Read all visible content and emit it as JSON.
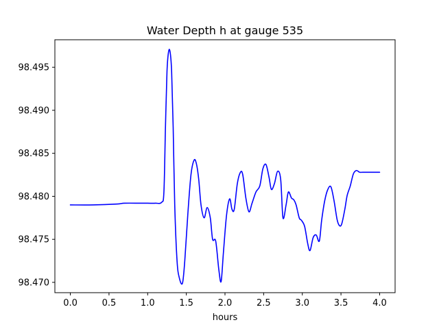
{
  "chart_data": {
    "type": "line",
    "title": "Water Depth h at gauge 535",
    "xlabel": "hours",
    "ylabel": "",
    "xlim": [
      -0.2,
      4.2
    ],
    "ylim": [
      98.4688,
      98.4982
    ],
    "xticks": [
      0.0,
      0.5,
      1.0,
      1.5,
      2.0,
      2.5,
      3.0,
      3.5,
      4.0
    ],
    "xtick_labels": [
      "0.0",
      "0.5",
      "1.0",
      "1.5",
      "2.0",
      "2.5",
      "3.0",
      "3.5",
      "4.0"
    ],
    "yticks": [
      98.47,
      98.475,
      98.48,
      98.485,
      98.49,
      98.495
    ],
    "ytick_labels": [
      "98.470",
      "98.475",
      "98.480",
      "98.485",
      "98.490",
      "98.495"
    ],
    "grid": false,
    "series": [
      {
        "color": "#0000ff",
        "x": [
          0.0,
          0.3,
          0.6,
          0.7,
          0.9,
          1.0,
          1.1,
          1.18,
          1.21,
          1.23,
          1.25,
          1.27,
          1.29,
          1.31,
          1.33,
          1.35,
          1.38,
          1.41,
          1.45,
          1.48,
          1.52,
          1.56,
          1.6,
          1.63,
          1.66,
          1.69,
          1.73,
          1.77,
          1.81,
          1.84,
          1.88,
          1.92,
          1.95,
          1.98,
          2.02,
          2.06,
          2.09,
          2.12,
          2.16,
          2.2,
          2.23,
          2.27,
          2.31,
          2.35,
          2.4,
          2.45,
          2.49,
          2.53,
          2.57,
          2.6,
          2.64,
          2.68,
          2.72,
          2.75,
          2.79,
          2.82,
          2.86,
          2.89,
          2.92,
          2.96,
          2.99,
          3.03,
          3.07,
          3.1,
          3.14,
          3.18,
          3.22,
          3.25,
          3.29,
          3.33,
          3.37,
          3.41,
          3.45,
          3.48,
          3.51,
          3.55,
          3.58,
          3.62,
          3.66,
          3.7,
          3.74,
          3.78,
          3.82,
          3.86,
          3.9,
          3.94,
          3.97,
          4.0
        ],
        "y": [
          98.479,
          98.479,
          98.4791,
          98.4792,
          98.4792,
          98.4792,
          98.4792,
          98.4793,
          98.4805,
          98.488,
          98.4945,
          98.4968,
          98.4968,
          98.4945,
          98.488,
          98.479,
          98.4725,
          98.4705,
          98.4699,
          98.4725,
          98.478,
          98.4825,
          98.4842,
          98.4838,
          98.482,
          98.479,
          98.4775,
          98.4787,
          98.4775,
          98.475,
          98.4748,
          98.4715,
          98.4701,
          98.4735,
          98.4778,
          98.4797,
          98.4785,
          98.4785,
          98.4815,
          98.4828,
          98.4825,
          98.4798,
          98.4782,
          98.4792,
          98.4805,
          98.4812,
          98.4832,
          98.4837,
          98.4822,
          98.4808,
          98.4815,
          98.4829,
          98.482,
          98.4775,
          98.479,
          98.4805,
          98.4798,
          98.4796,
          98.479,
          98.4775,
          98.4772,
          98.4765,
          98.4745,
          98.4737,
          98.4752,
          98.4755,
          98.4748,
          98.4772,
          98.4795,
          98.4808,
          98.4811,
          98.4795,
          98.4773,
          98.4766,
          98.4768,
          98.4785,
          98.4801,
          98.4812,
          98.4826,
          98.483,
          98.4828,
          98.4828,
          98.4828,
          98.4828,
          98.4828,
          98.4828,
          98.4828,
          98.4828
        ]
      }
    ]
  }
}
